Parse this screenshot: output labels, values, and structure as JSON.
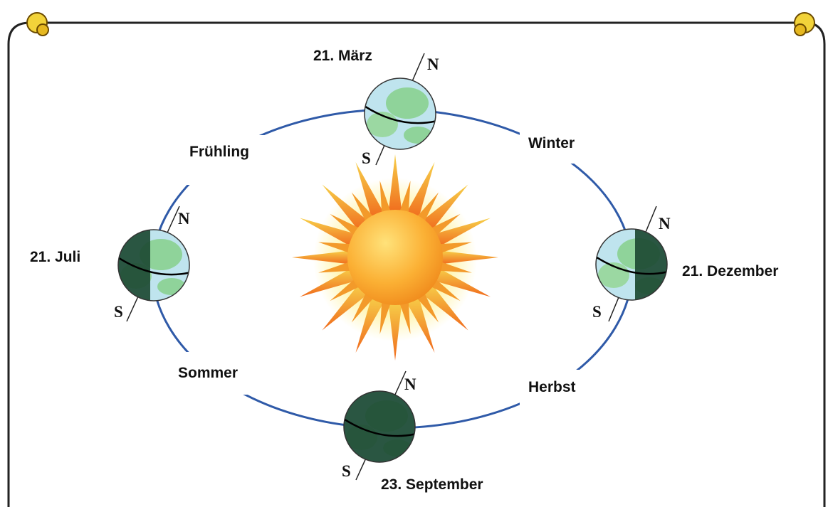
{
  "positions": [
    {
      "date": "21. März",
      "north": "N",
      "south": "S"
    },
    {
      "date": "21. Juli",
      "north": "N",
      "south": "S"
    },
    {
      "date": "21. Dezember",
      "north": "N",
      "south": "S"
    },
    {
      "date": "23. September",
      "north": "N",
      "south": "S"
    }
  ],
  "seasons": [
    "Frühling",
    "Winter",
    "Herbst",
    "Sommer"
  ]
}
